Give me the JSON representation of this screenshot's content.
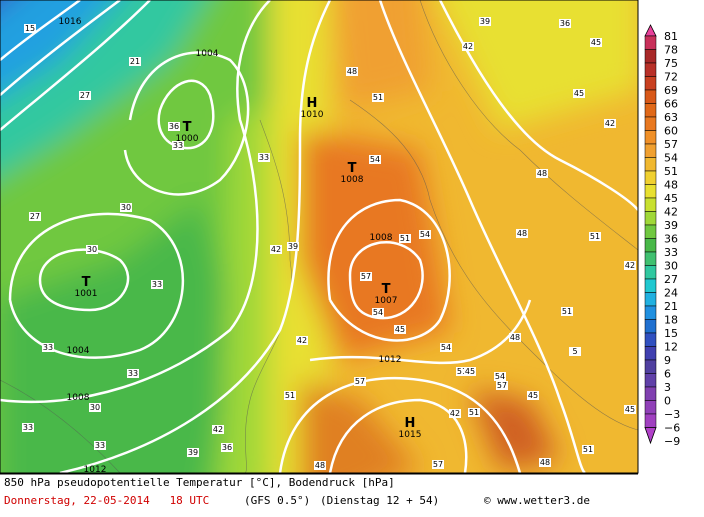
{
  "map": {
    "pressure_centers": [
      {
        "symbol": "H",
        "value": "1010"
      },
      {
        "symbol": "T",
        "value": "1000"
      },
      {
        "symbol": "T",
        "value": "1001"
      },
      {
        "symbol": "T",
        "value": "1007"
      },
      {
        "symbol": "H",
        "value": "1015"
      },
      {
        "symbol": "T",
        "value": "1008"
      }
    ],
    "isobar_labels": [
      "1016",
      "1004",
      "1004",
      "1008",
      "1012",
      "1008",
      "1012"
    ],
    "isotherm_labels": [
      "15",
      "21",
      "27",
      "33",
      "36",
      "33",
      "30",
      "27",
      "30",
      "33",
      "33",
      "33",
      "30",
      "33",
      "33",
      "39",
      "36",
      "42",
      "39",
      "42",
      "42",
      "51",
      "48",
      "54",
      "57",
      "54",
      "51",
      "54",
      "57",
      "54",
      "51",
      "45",
      "48",
      "54",
      "57",
      "45",
      "51",
      "5",
      "45",
      "48",
      "51",
      "48",
      "42",
      "39",
      "36",
      "45",
      "42",
      "42",
      "45",
      "51",
      "48",
      "57",
      "51",
      "42",
      "45",
      "48",
      "51"
    ]
  },
  "colorbar": {
    "labels": [
      "81",
      "78",
      "75",
      "72",
      "69",
      "66",
      "63",
      "60",
      "57",
      "54",
      "51",
      "48",
      "45",
      "42",
      "39",
      "36",
      "33",
      "30",
      "27",
      "24",
      "21",
      "18",
      "15",
      "12",
      "9",
      "6",
      "3",
      "0",
      "−3",
      "−6",
      "−9"
    ],
    "colors": [
      "#e8409a",
      "#c8305a",
      "#a82828",
      "#b83028",
      "#c84020",
      "#d85818",
      "#e06818",
      "#e87820",
      "#f09028",
      "#f0a030",
      "#f0b830",
      "#f0d030",
      "#e8e030",
      "#c8e030",
      "#a0d838",
      "#70c840",
      "#48b848",
      "#40c070",
      "#30c8a0",
      "#20c8d0",
      "#20b0e0",
      "#2090e0",
      "#2070d0",
      "#3050c0",
      "#4040b0",
      "#5040a0",
      "#6040a8",
      "#8040b0",
      "#9040b8",
      "#a040c0",
      "#b040c8"
    ]
  },
  "footer": {
    "line1": "850 hPa pseudopotentielle Temperatur [°C], Bodendruck [hPa]",
    "date": "Donnerstag, 22-05-2014   18 UTC",
    "model": "(GFS 0.5°)",
    "run": "(Dienstag 12 + 54)",
    "credit": "© www.wetter3.de"
  }
}
